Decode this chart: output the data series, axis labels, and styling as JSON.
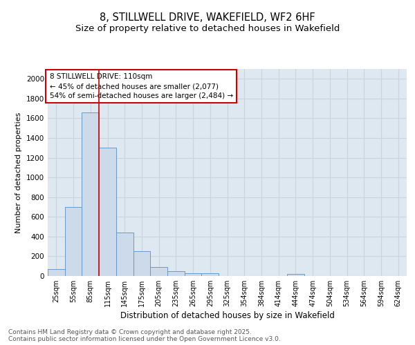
{
  "title_line1": "8, STILLWELL DRIVE, WAKEFIELD, WF2 6HF",
  "title_line2": "Size of property relative to detached houses in Wakefield",
  "xlabel": "Distribution of detached houses by size in Wakefield",
  "ylabel": "Number of detached properties",
  "bar_labels": [
    "25sqm",
    "55sqm",
    "85sqm",
    "115sqm",
    "145sqm",
    "175sqm",
    "205sqm",
    "235sqm",
    "265sqm",
    "295sqm",
    "325sqm",
    "354sqm",
    "384sqm",
    "414sqm",
    "444sqm",
    "474sqm",
    "504sqm",
    "534sqm",
    "564sqm",
    "594sqm",
    "624sqm"
  ],
  "bar_values": [
    70,
    700,
    1660,
    1300,
    440,
    250,
    90,
    50,
    30,
    25,
    0,
    0,
    0,
    0,
    20,
    0,
    0,
    0,
    0,
    0,
    0
  ],
  "bar_color": "#ccdaea",
  "bar_edge_color": "#6699cc",
  "grid_color": "#c8d4e0",
  "bg_color": "#dde8f0",
  "annotation_line1": "8 STILLWELL DRIVE: 110sqm",
  "annotation_line2": "← 45% of detached houses are smaller (2,077)",
  "annotation_line3": "54% of semi-detached houses are larger (2,484) →",
  "annotation_box_facecolor": "#ffffff",
  "annotation_box_edgecolor": "#cc0000",
  "vline_color": "#cc0000",
  "vline_x": 2.5,
  "footer_line1": "Contains HM Land Registry data © Crown copyright and database right 2025.",
  "footer_line2": "Contains public sector information licensed under the Open Government Licence v3.0.",
  "ylim": [
    0,
    2100
  ],
  "yticks": [
    0,
    200,
    400,
    600,
    800,
    1000,
    1200,
    1400,
    1600,
    1800,
    2000
  ]
}
